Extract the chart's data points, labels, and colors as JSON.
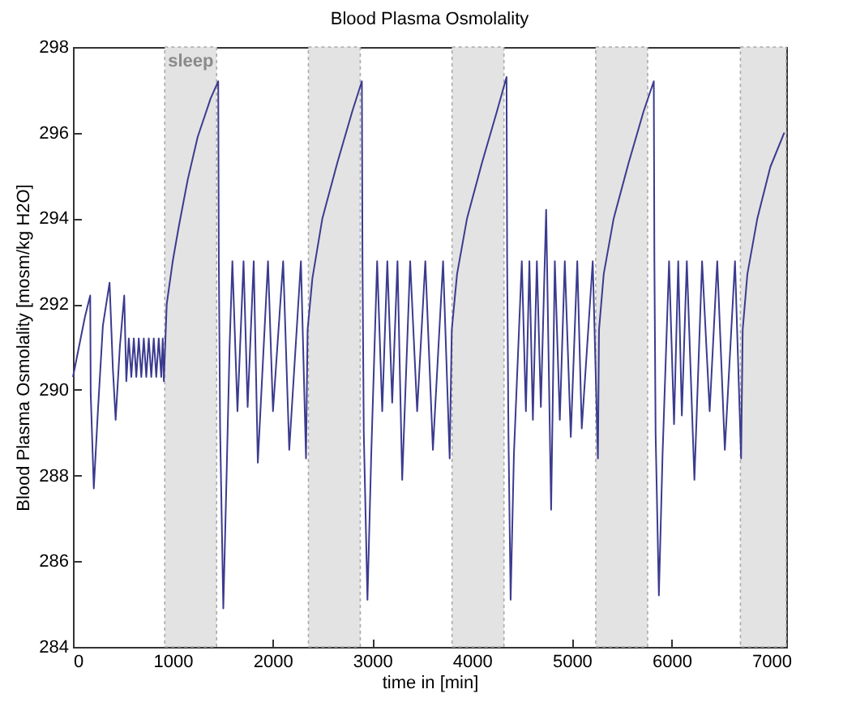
{
  "chart_data": {
    "type": "line",
    "title": "Blood Plasma Osmolality",
    "xlabel": "time in [min]",
    "ylabel": "Blood Plasma Osmolality [mosm/kg H2O]",
    "x": [
      0,
      60,
      120,
      173,
      178,
      209,
      250,
      300,
      367,
      400,
      428,
      470,
      514,
      535,
      560,
      585,
      610,
      635,
      660,
      685,
      710,
      735,
      760,
      785,
      810,
      835,
      860,
      885,
      900,
      911,
      940,
      1000,
      1060,
      1150,
      1250,
      1380,
      1456,
      1462,
      1475,
      1507,
      1540,
      1570,
      1598,
      1649,
      1710,
      1751,
      1812,
      1853,
      1955,
      2005,
      2107,
      2168,
      2285,
      2336,
      2352,
      2400,
      2500,
      2650,
      2800,
      2896,
      2902,
      2915,
      2952,
      2990,
      3049,
      3100,
      3151,
      3200,
      3253,
      3300,
      3380,
      3450,
      3532,
      3608,
      3710,
      3776,
      3797,
      3850,
      3950,
      4100,
      4250,
      4346,
      4352,
      4365,
      4387,
      4420,
      4499,
      4540,
      4575,
      4610,
      4650,
      4690,
      4743,
      4793,
      4830,
      4880,
      4930,
      4990,
      5055,
      5100,
      5210,
      5262,
      5273,
      5320,
      5420,
      5570,
      5720,
      5822,
      5828,
      5840,
      5873,
      5910,
      5975,
      6025,
      6067,
      6103,
      6153,
      6229,
      6306,
      6382,
      6458,
      6534,
      6636,
      6697,
      6713,
      6760,
      6860,
      6990,
      7130
    ],
    "series": [
      {
        "color": "#3b3b8f",
        "values": [
          290.3,
          291.0,
          291.7,
          292.2,
          289.9,
          287.7,
          289.5,
          291.5,
          292.5,
          290.5,
          289.3,
          291.0,
          292.2,
          290.2,
          291.2,
          290.3,
          291.2,
          290.3,
          291.2,
          290.3,
          291.2,
          290.3,
          291.2,
          290.3,
          291.2,
          290.3,
          291.2,
          290.3,
          291.2,
          290.2,
          292.0,
          293.0,
          293.8,
          294.9,
          295.9,
          296.8,
          297.2,
          293.0,
          289.1,
          284.9,
          288.0,
          291.0,
          293.0,
          289.5,
          293.0,
          289.6,
          293.0,
          288.3,
          293.0,
          289.5,
          293.0,
          288.6,
          293.0,
          288.4,
          291.4,
          292.6,
          294.0,
          295.3,
          296.5,
          297.2,
          293.0,
          289.0,
          285.1,
          288.5,
          293.0,
          289.5,
          293.0,
          289.7,
          293.0,
          287.9,
          293.0,
          289.5,
          293.0,
          288.6,
          293.0,
          288.4,
          291.4,
          292.7,
          294.0,
          295.3,
          296.5,
          297.3,
          293.0,
          289.0,
          285.1,
          288.5,
          293.0,
          289.5,
          293.0,
          289.3,
          293.0,
          289.6,
          294.2,
          287.2,
          293.0,
          289.3,
          293.0,
          288.9,
          293.0,
          289.1,
          293.0,
          288.4,
          291.4,
          292.7,
          294.0,
          295.3,
          296.5,
          297.2,
          293.0,
          289.0,
          285.2,
          288.5,
          293.0,
          289.2,
          293.0,
          289.4,
          293.0,
          287.9,
          293.0,
          289.5,
          293.0,
          288.6,
          293.0,
          288.4,
          291.4,
          292.7,
          294.0,
          295.2,
          296.0
        ]
      }
    ],
    "xlim": [
      0,
      7150
    ],
    "xticks": [
      0,
      1000,
      2000,
      3000,
      4000,
      5000,
      6000,
      7000
    ],
    "ylim": [
      284,
      298
    ],
    "yticks": [
      284,
      286,
      288,
      290,
      292,
      294,
      296,
      298
    ],
    "bands": [
      {
        "axis": "x",
        "from": 920,
        "to": 1440,
        "label": "sleep",
        "color": "#e3e3e3"
      },
      {
        "axis": "x",
        "from": 2360,
        "to": 2880,
        "color": "#e3e3e3"
      },
      {
        "axis": "x",
        "from": 3800,
        "to": 4320,
        "color": "#e3e3e3"
      },
      {
        "axis": "x",
        "from": 5240,
        "to": 5760,
        "color": "#e3e3e3"
      },
      {
        "axis": "x",
        "from": 6690,
        "to": 7150,
        "color": "#e3e3e3"
      }
    ],
    "line_style": "solid"
  }
}
